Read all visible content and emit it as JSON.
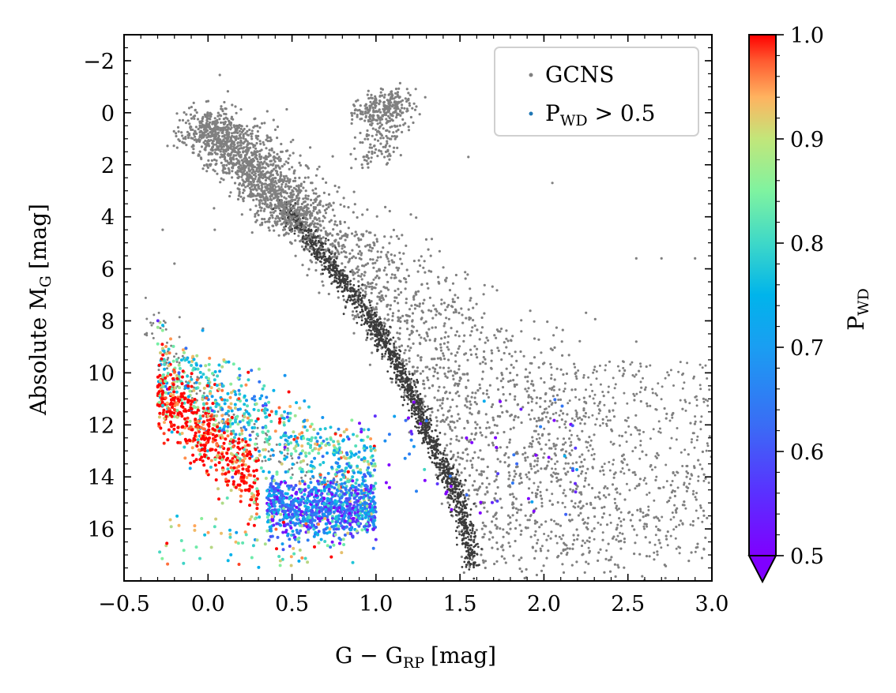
{
  "chart_data": {
    "type": "scatter",
    "title": "",
    "xlabel": "G − G",
    "xlabel_sub": "RP",
    "xlabel_unit": "[mag]",
    "ylabel": "Absolute M",
    "ylabel_sub": "G",
    "ylabel_unit": "[mag]",
    "xlim": [
      -0.5,
      3.0
    ],
    "ylim": [
      18.0,
      -3.0
    ],
    "y_inverted": true,
    "x_ticks": [
      -0.5,
      0.0,
      0.5,
      1.0,
      1.5,
      2.0,
      2.5,
      3.0
    ],
    "x_tick_labels": [
      "−0.5",
      "0.0",
      "0.5",
      "1.0",
      "1.5",
      "2.0",
      "2.5",
      "3.0"
    ],
    "y_ticks": [
      -2,
      0,
      2,
      4,
      6,
      8,
      10,
      12,
      14,
      16
    ],
    "y_tick_labels": [
      "−2",
      "0",
      "2",
      "4",
      "6",
      "8",
      "10",
      "12",
      "14",
      "16"
    ],
    "legend": {
      "placement": "top-right",
      "entries": [
        {
          "label": "GCNS",
          "color": "#808080"
        },
        {
          "label": "P",
          "label_sub": "WD",
          "label_tail": " > 0.5",
          "color": "#1f77b4"
        }
      ]
    },
    "colorbar": {
      "label": "P",
      "label_sub": "WD",
      "range": [
        0.5,
        1.0
      ],
      "extend": "min",
      "ticks": [
        0.5,
        0.6,
        0.7,
        0.8,
        0.9,
        1.0
      ],
      "tick_labels": [
        "0.5",
        "0.6",
        "0.7",
        "0.8",
        "0.9",
        "1.0"
      ],
      "colormap": "rainbow"
    },
    "series": [
      {
        "name": "GCNS",
        "color": "#808080",
        "main_sequence": [
          [
            -0.05,
            0.5
          ],
          [
            0.1,
            1.2
          ],
          [
            0.3,
            2.6
          ],
          [
            0.5,
            4.0
          ],
          [
            0.7,
            5.6
          ],
          [
            0.9,
            7.3
          ],
          [
            1.05,
            8.8
          ],
          [
            1.2,
            10.6
          ],
          [
            1.3,
            12.2
          ],
          [
            1.42,
            13.8
          ],
          [
            1.52,
            15.4
          ],
          [
            1.58,
            17.5
          ]
        ],
        "giant_branch": [
          [
            0.9,
            0.0
          ],
          [
            1.05,
            -0.3
          ],
          [
            1.15,
            -0.5
          ],
          [
            1.03,
            0.8
          ],
          [
            0.95,
            1.8
          ]
        ],
        "white_dwarf_sequence": [
          [
            -0.33,
            7.8
          ],
          [
            -0.25,
            9.5
          ],
          [
            0.0,
            11.2
          ],
          [
            0.3,
            12.6
          ],
          [
            0.6,
            14.0
          ],
          [
            0.9,
            15.2
          ]
        ],
        "outliers": [
          [
            -0.27,
            4.5
          ],
          [
            -0.2,
            5.8
          ],
          [
            0.04,
            4.5
          ],
          [
            -0.03,
            8.3
          ],
          [
            1.55,
            1.7
          ],
          [
            2.05,
            2.7
          ],
          [
            2.55,
            5.6
          ],
          [
            2.7,
            5.6
          ],
          [
            2.9,
            5.6
          ],
          [
            2.55,
            8.8
          ],
          [
            2.95,
            11.0
          ],
          [
            2.85,
            14.0
          ]
        ]
      },
      {
        "name": "P_WD > 0.5",
        "color_by": "P_WD",
        "clusters": [
          {
            "region": "upper-left blue sequence",
            "x_range": [
              -0.3,
              1.0
            ],
            "y_range": [
              9.0,
              15.0
            ],
            "p_wd": 0.8
          },
          {
            "region": "red left band",
            "x_range": [
              -0.3,
              0.3
            ],
            "y_range": [
              10.0,
              15.0
            ],
            "p_wd": 1.0
          },
          {
            "region": "dense blue-violet lower clump",
            "x_range": [
              0.35,
              1.0
            ],
            "y_range": [
              14.0,
              16.5
            ],
            "p_wd": 0.65
          },
          {
            "region": "violet sparse extension",
            "x_range": [
              0.9,
              2.2
            ],
            "y_range": [
              11.0,
              15.5
            ],
            "p_wd": 0.55
          },
          {
            "region": "scattered bottom points",
            "x_range": [
              -0.3,
              0.9
            ],
            "y_range": [
              15.5,
              17.5
            ],
            "p_wd": 0.85
          }
        ]
      }
    ]
  }
}
